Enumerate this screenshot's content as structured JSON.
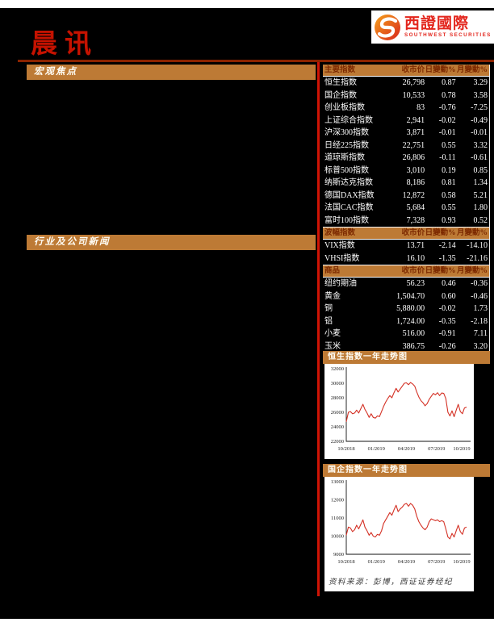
{
  "logo": {
    "name_cn": "西證國際",
    "name_en": "SOUTHWEST SECURITIES",
    "swirl_icon": "swirl-s-icon"
  },
  "masthead": {
    "title": "晨讯"
  },
  "left_column": {
    "sections": [
      {
        "label": "宏观焦点"
      },
      {
        "label": "行业及公司新闻"
      }
    ]
  },
  "tables": [
    {
      "headers": [
        "主要指数",
        "收市价",
        "日變動%",
        "月變動%"
      ],
      "rows": [
        [
          "恒生指数",
          "26,798",
          "0.87",
          "3.29"
        ],
        [
          "国企指数",
          "10,533",
          "0.78",
          "3.58"
        ],
        [
          "创业板指数",
          "83",
          "-0.76",
          "-7.25"
        ],
        [
          "上证综合指数",
          "2,941",
          "-0.02",
          "-0.49"
        ],
        [
          "沪深300指数",
          "3,871",
          "-0.01",
          "-0.01"
        ],
        [
          "日经225指数",
          "22,751",
          "0.55",
          "3.32"
        ],
        [
          "道琼斯指数",
          "26,806",
          "-0.11",
          "-0.61"
        ],
        [
          "标普500指数",
          "3,010",
          "0.19",
          "0.85"
        ],
        [
          "纳斯达克指数",
          "8,186",
          "0.81",
          "1.34"
        ],
        [
          "德国DAX指数",
          "12,872",
          "0.58",
          "5.21"
        ],
        [
          "法国CAC指数",
          "5,684",
          "0.55",
          "1.80"
        ],
        [
          "富时100指数",
          "7,328",
          "0.93",
          "0.52"
        ]
      ]
    },
    {
      "headers": [
        "波幅指数",
        "收市价",
        "日變動%",
        "月變動%"
      ],
      "rows": [
        [
          "VIX指数",
          "13.71",
          "-2.14",
          "-14.10"
        ],
        [
          "VHSI指数",
          "16.10",
          "-1.35",
          "-21.16"
        ]
      ]
    },
    {
      "headers": [
        "商品",
        "收市价",
        "日變動%",
        "月變動%"
      ],
      "rows": [
        [
          "纽约期油",
          "56.23",
          "0.46",
          "-0.36"
        ],
        [
          "黄金",
          "1,504.70",
          "0.60",
          "-0.46"
        ],
        [
          "铜",
          "5,880.00",
          "-0.02",
          "1.73"
        ],
        [
          "铝",
          "1,724.00",
          "-0.35",
          "-2.18"
        ],
        [
          "小麦",
          "516.00",
          "-0.91",
          "7.11"
        ],
        [
          "玉米",
          "386.75",
          "-0.26",
          "3.20"
        ]
      ]
    }
  ],
  "chart_data": [
    {
      "type": "line",
      "title": "恒生指数一年走势图",
      "x_ticks": [
        "10/2018",
        "01/2019",
        "04/2019",
        "07/2019",
        "10/2019"
      ],
      "ylim": [
        22000,
        32000
      ],
      "yticks": [
        22000,
        24000,
        26000,
        28000,
        30000,
        32000
      ],
      "grid": false,
      "legend": false,
      "line_color": "#d43125",
      "series": [
        {
          "name": "恒生指数",
          "values": [
            24700,
            26000,
            26100,
            25800,
            25900,
            26300,
            25900,
            26500,
            27100,
            26400,
            25900,
            25300,
            25800,
            25300,
            25200,
            25500,
            25400,
            26100,
            26800,
            27400,
            27900,
            28300,
            28000,
            28700,
            29300,
            28800,
            29200,
            29600,
            30000,
            30050,
            29800,
            30100,
            29900,
            29600,
            28800,
            28100,
            27600,
            27300,
            26900,
            27200,
            27800,
            28200,
            28600,
            28400,
            28700,
            28300,
            28650,
            28600,
            27900,
            26000,
            25500,
            26200,
            25400,
            26300,
            27100,
            26100,
            25800,
            26600,
            26700
          ]
        }
      ]
    },
    {
      "type": "line",
      "title": "国企指数一年走势图",
      "x_ticks": [
        "10/2018",
        "01/2019",
        "04/2019",
        "07/2019",
        "10/2019"
      ],
      "ylim": [
        9000,
        13000
      ],
      "yticks": [
        9000,
        10000,
        11000,
        12000,
        13000
      ],
      "grid": false,
      "legend": false,
      "line_color": "#d43125",
      "series": [
        {
          "name": "国企指数",
          "values": [
            10050,
            10500,
            10450,
            10250,
            10350,
            10600,
            10400,
            10650,
            10900,
            10500,
            10300,
            10050,
            10200,
            10000,
            9950,
            10100,
            10050,
            10300,
            10700,
            10900,
            11100,
            11300,
            11150,
            11450,
            11700,
            11350,
            11500,
            11600,
            11750,
            11800,
            11650,
            11800,
            11700,
            11500,
            11100,
            10800,
            10600,
            10450,
            10350,
            10500,
            10800,
            10950,
            10900,
            10850,
            10900,
            10800,
            10850,
            10800,
            10400,
            9950,
            9850,
            10150,
            9950,
            10300,
            10600,
            10250,
            10100,
            10450,
            10500
          ]
        }
      ]
    }
  ],
  "source_note": "资料来源：彭博，西证证券经纪",
  "colors": {
    "accent_orange": "#bd7a35",
    "bright_red": "#c51200",
    "dark_red_rule": "#8b2300",
    "divider_red": "#d01405",
    "chart_line": "#d43125",
    "header_text_on_orange": "#7c2900"
  }
}
